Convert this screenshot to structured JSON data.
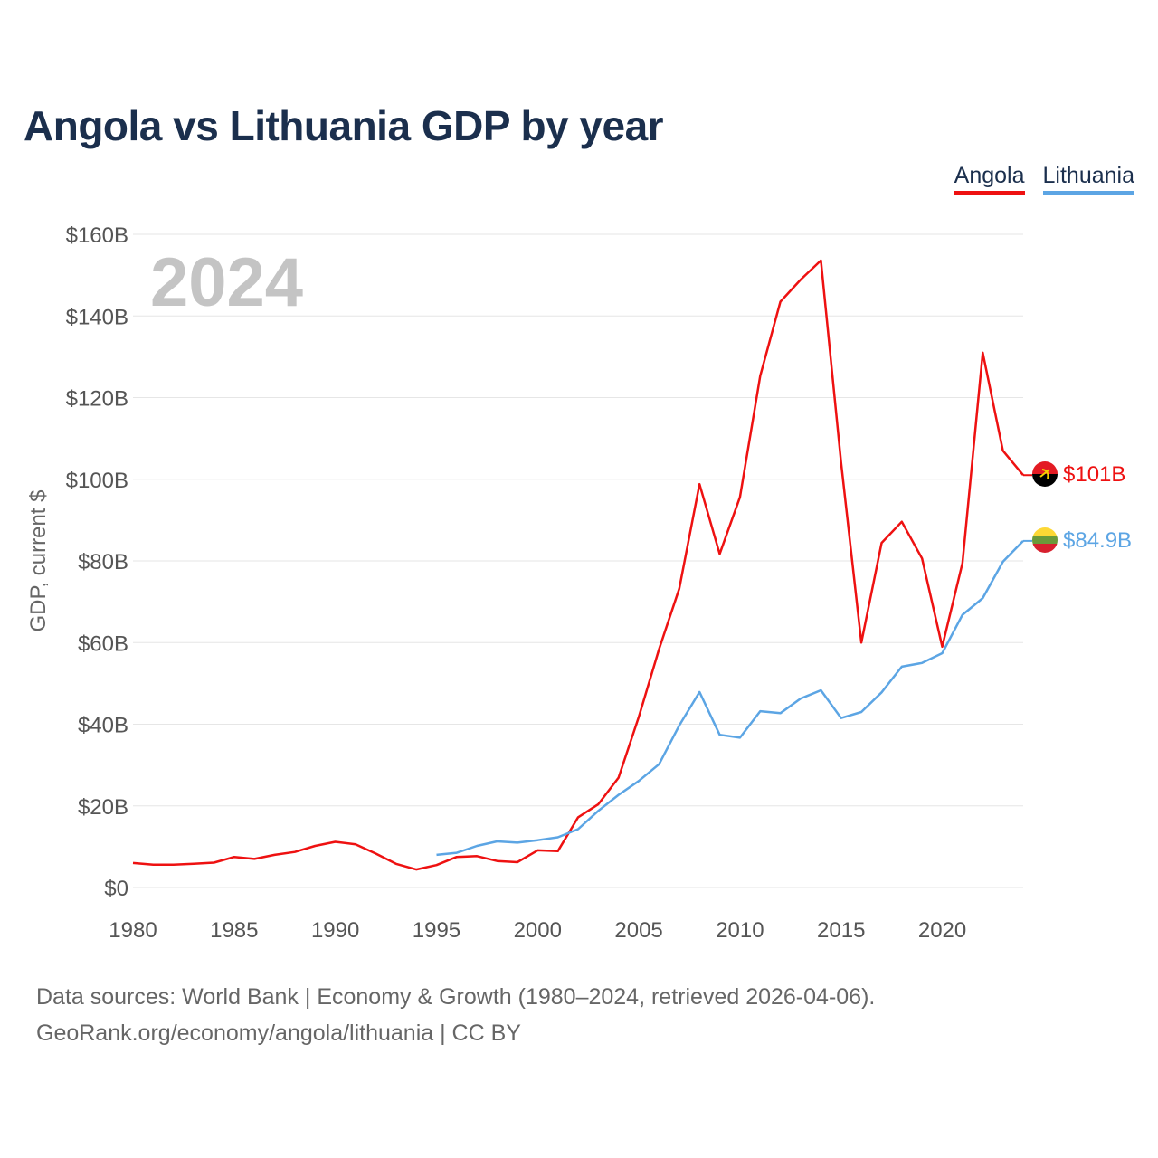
{
  "title": "Angola vs Lithuania GDP by year",
  "legend": [
    {
      "label": "Angola",
      "color": "#ee1111"
    },
    {
      "label": "Lithuania",
      "color": "#5ca5e4"
    }
  ],
  "year_overlay": "2024",
  "footer": {
    "line1": "Data sources: World Bank | Economy & Growth (1980–2024, retrieved 2026-04-06).",
    "line2": "GeoRank.org/economy/angola/lithuania | CC BY"
  },
  "chart_data": {
    "type": "line",
    "title": "Angola vs Lithuania GDP by year",
    "xlabel": "",
    "ylabel": "GDP, current $",
    "xlim": [
      1980,
      2024
    ],
    "ylim": [
      0,
      160
    ],
    "y_unit": "billion USD",
    "grid": true,
    "legend_position": "top-right",
    "x_ticks": [
      1980,
      1985,
      1990,
      1995,
      2000,
      2005,
      2010,
      2015,
      2020
    ],
    "x_tick_labels": [
      "1980",
      "1985",
      "1990",
      "1995",
      "2000",
      "2005",
      "2010",
      "2015",
      "2020"
    ],
    "y_ticks": [
      0,
      20,
      40,
      60,
      80,
      100,
      120,
      140,
      160
    ],
    "y_tick_labels": [
      "$0",
      "$20B",
      "$40B",
      "$60B",
      "$80B",
      "$100B",
      "$120B",
      "$140B",
      "$160B"
    ],
    "series": [
      {
        "name": "Angola",
        "color": "#ee1111",
        "flag": "angola-flag",
        "end_label": "$101B",
        "x": [
          1980,
          1981,
          1982,
          1983,
          1984,
          1985,
          1986,
          1987,
          1988,
          1989,
          1990,
          1991,
          1992,
          1993,
          1994,
          1995,
          1996,
          1997,
          1998,
          1999,
          2000,
          2001,
          2002,
          2003,
          2004,
          2005,
          2006,
          2007,
          2008,
          2009,
          2010,
          2011,
          2012,
          2013,
          2014,
          2015,
          2016,
          2017,
          2018,
          2019,
          2020,
          2021,
          2022,
          2023,
          2024
        ],
        "values": [
          6.0,
          5.6,
          5.6,
          5.8,
          6.1,
          7.5,
          7.0,
          8.0,
          8.7,
          10.2,
          11.2,
          10.6,
          8.3,
          5.8,
          4.4,
          5.5,
          7.5,
          7.7,
          6.5,
          6.2,
          9.1,
          8.9,
          17.2,
          20.4,
          26.9,
          41.8,
          58.4,
          73.2,
          98.8,
          81.7,
          95.6,
          125.3,
          143.5,
          148.9,
          153.6,
          104.1,
          60.0,
          84.4,
          89.6,
          80.6,
          59.0,
          79.5,
          131.0,
          107.0,
          101.0
        ]
      },
      {
        "name": "Lithuania",
        "color": "#5ca5e4",
        "flag": "lithuania-flag",
        "end_label": "$84.9B",
        "x": [
          1995,
          1996,
          1997,
          1998,
          1999,
          2000,
          2001,
          2002,
          2003,
          2004,
          2005,
          2006,
          2007,
          2008,
          2009,
          2010,
          2011,
          2012,
          2013,
          2014,
          2015,
          2016,
          2017,
          2018,
          2019,
          2020,
          2021,
          2022,
          2023,
          2024
        ],
        "values": [
          8.0,
          8.5,
          10.2,
          11.3,
          11.0,
          11.6,
          12.3,
          14.3,
          18.8,
          22.7,
          26.1,
          30.2,
          39.7,
          47.9,
          37.4,
          36.7,
          43.2,
          42.7,
          46.3,
          48.3,
          41.5,
          43.0,
          47.8,
          54.1,
          55.0,
          57.4,
          66.8,
          70.9,
          79.8,
          84.9
        ]
      }
    ]
  }
}
